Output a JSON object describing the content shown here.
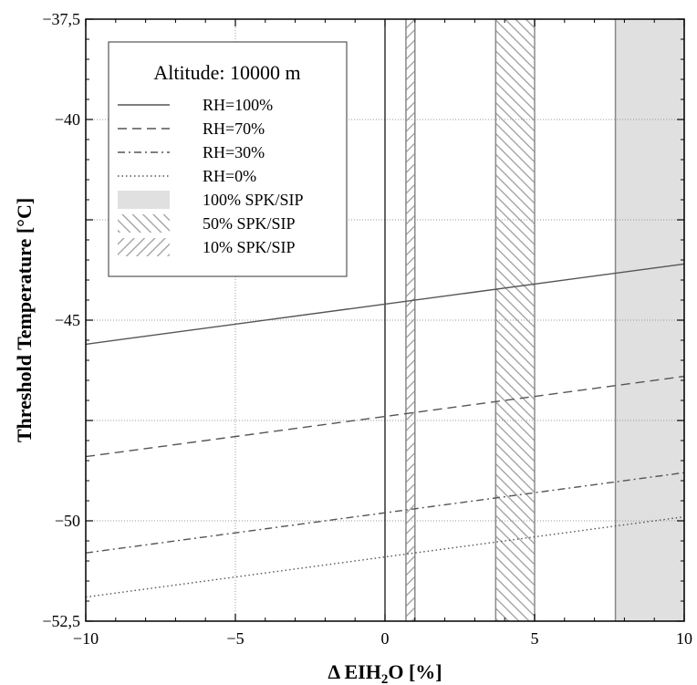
{
  "chart_data": {
    "type": "line",
    "title": "",
    "xlabel_main": "Δ EIH",
    "xlabel_sub": "2",
    "xlabel_rest": "O [%]",
    "ylabel": "Threshold Temperature [°C]",
    "xlim": [
      -10,
      10
    ],
    "ylim": [
      -52.5,
      -37.5
    ],
    "x_ticks": [
      {
        "value": -10,
        "label": "−10"
      },
      {
        "value": -5,
        "label": "−5"
      },
      {
        "value": 0,
        "label": "0"
      },
      {
        "value": 5,
        "label": "5"
      },
      {
        "value": 10,
        "label": "10"
      }
    ],
    "y_ticks": [
      {
        "value": -37.5,
        "label": "−37,5"
      },
      {
        "value": -40,
        "label": "−40"
      },
      {
        "value": -42.5,
        "label": ""
      },
      {
        "value": -45,
        "label": "−45"
      },
      {
        "value": -47.5,
        "label": ""
      },
      {
        "value": -50,
        "label": "−50"
      },
      {
        "value": -52.5,
        "label": "−52,5"
      }
    ],
    "grid": true,
    "legend_title": "Altitude: 10000 m",
    "legend_position": "top-left",
    "series": [
      {
        "name": "RH=100%",
        "style": "solid",
        "x": [
          -10,
          10
        ],
        "y": [
          -45.6,
          -43.6
        ]
      },
      {
        "name": "RH=70%",
        "style": "dashed",
        "x": [
          -10,
          10
        ],
        "y": [
          -48.4,
          -46.4
        ]
      },
      {
        "name": "RH=30%",
        "style": "dashdot",
        "x": [
          -10,
          10
        ],
        "y": [
          -50.8,
          -48.8
        ]
      },
      {
        "name": "RH=0%",
        "style": "dotted",
        "x": [
          -10,
          10
        ],
        "y": [
          -51.9,
          -49.9
        ]
      }
    ],
    "bands": [
      {
        "name": "100% SPK/SIP",
        "pattern": "solid-gray",
        "x_range": [
          7.7,
          10
        ]
      },
      {
        "name": "50% SPK/SIP",
        "pattern": "hatch-forward",
        "x_range": [
          3.7,
          5.0
        ]
      },
      {
        "name": "10% SPK/SIP",
        "pattern": "hatch-backward",
        "x_range": [
          0.7,
          1.0
        ]
      }
    ],
    "colors": {
      "line": "#555555",
      "band_fill": "#e0e0e0",
      "band_edge": "#888888",
      "hatch": "#9a9a9a",
      "grid": "#999999",
      "axis": "#000000"
    }
  }
}
